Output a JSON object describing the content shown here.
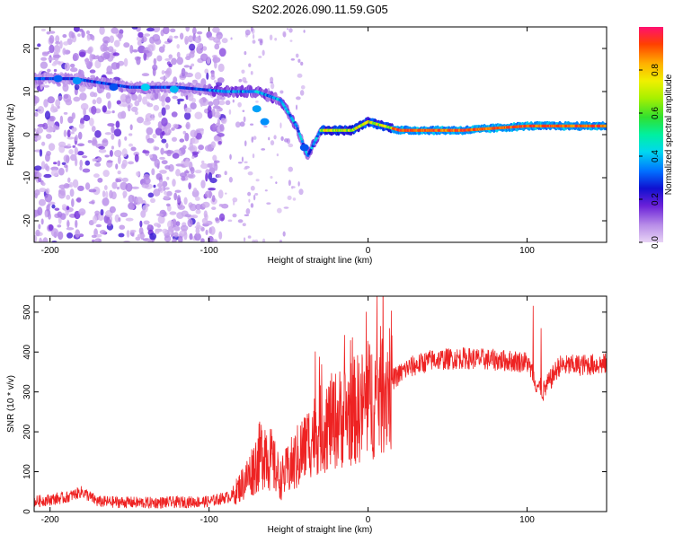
{
  "page": {
    "title": "S202.2026.090.11.59.G05"
  },
  "chart_data": [
    {
      "type": "heatmap",
      "title": "S202.2026.090.11.59.G05",
      "xlabel": "Height of straight line (km)",
      "ylabel": "Frequency (Hz)",
      "xlim": [
        -210,
        150
      ],
      "ylim": [
        -25,
        25
      ],
      "xticks": [
        -200,
        -100,
        0,
        100
      ],
      "yticks": [
        -20,
        -10,
        0,
        10,
        20
      ],
      "colorbar": {
        "label": "Normalized spectral amplitude",
        "range": [
          0.0,
          1.0
        ],
        "ticks": [
          0.0,
          0.2,
          0.4,
          0.6,
          0.8
        ]
      },
      "ridge": {
        "description_points": [
          {
            "x": -200,
            "freq": 13
          },
          {
            "x": -185,
            "freq": 13
          },
          {
            "x": -150,
            "freq": 11
          },
          {
            "x": -120,
            "freq": 11
          },
          {
            "x": -90,
            "freq": 10
          },
          {
            "x": -70,
            "freq": 10
          },
          {
            "x": -55,
            "freq": 8
          },
          {
            "x": -45,
            "freq": 2
          },
          {
            "x": -38,
            "freq": -5
          },
          {
            "x": -30,
            "freq": 1
          },
          {
            "x": -10,
            "freq": 1
          },
          {
            "x": 0,
            "freq": 3
          },
          {
            "x": 20,
            "freq": 1
          },
          {
            "x": 60,
            "freq": 1
          },
          {
            "x": 100,
            "freq": 2
          },
          {
            "x": 150,
            "freq": 2
          }
        ]
      }
    },
    {
      "type": "line",
      "xlabel": "Height of straight line (km)",
      "ylabel": "SNR (10 * v/v)",
      "xlim": [
        -210,
        150
      ],
      "ylim": [
        0,
        540
      ],
      "xticks": [
        -200,
        -100,
        0,
        100
      ],
      "yticks": [
        0,
        100,
        200,
        300,
        400,
        500
      ],
      "series": [
        {
          "name": "SNR",
          "color": "#ee2222",
          "trend": [
            {
              "x": -210,
              "y": 25
            },
            {
              "x": -190,
              "y": 35
            },
            {
              "x": -180,
              "y": 50
            },
            {
              "x": -170,
              "y": 25
            },
            {
              "x": -140,
              "y": 22
            },
            {
              "x": -100,
              "y": 25
            },
            {
              "x": -85,
              "y": 40
            },
            {
              "x": -75,
              "y": 90
            },
            {
              "x": -65,
              "y": 160
            },
            {
              "x": -55,
              "y": 80
            },
            {
              "x": -45,
              "y": 130
            },
            {
              "x": -35,
              "y": 190
            },
            {
              "x": -25,
              "y": 220
            },
            {
              "x": -15,
              "y": 240
            },
            {
              "x": -5,
              "y": 260
            },
            {
              "x": 5,
              "y": 290
            },
            {
              "x": 15,
              "y": 330
            },
            {
              "x": 25,
              "y": 360
            },
            {
              "x": 40,
              "y": 380
            },
            {
              "x": 60,
              "y": 385
            },
            {
              "x": 80,
              "y": 380
            },
            {
              "x": 100,
              "y": 375
            },
            {
              "x": 106,
              "y": 320
            },
            {
              "x": 110,
              "y": 300
            },
            {
              "x": 120,
              "y": 365
            },
            {
              "x": 150,
              "y": 370
            }
          ]
        }
      ]
    }
  ]
}
